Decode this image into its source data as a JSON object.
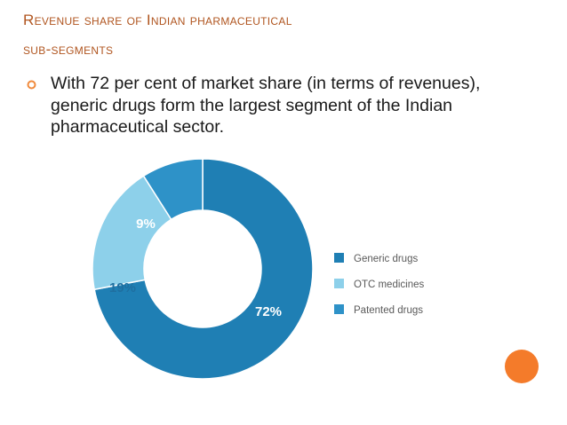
{
  "slide": {
    "title_line1": "Revenue share of Indian pharmaceutical",
    "title_line2": "sub-segments",
    "bullet_text": "With 72 per cent of market share (in terms of revenues), generic drugs form the largest segment of the Indian pharmaceutical sector.",
    "bullet_icon": "hollow-circle-bullet-icon",
    "colors": {
      "title": "#b0551f",
      "bullet": "#f08a3c",
      "accent_dot": "#f47b2a"
    }
  },
  "chart_data": {
    "type": "pie",
    "style": "donut",
    "legend_position": "right",
    "series": [
      {
        "name": "Generic drugs",
        "value": 72,
        "label": "72%",
        "color": "#1f7fb4"
      },
      {
        "name": "OTC medicines",
        "value": 19,
        "label": "19%",
        "color": "#8dd0ea"
      },
      {
        "name": "Patented drugs",
        "value": 9,
        "label": "9%",
        "color": "#2e92c8"
      }
    ]
  }
}
